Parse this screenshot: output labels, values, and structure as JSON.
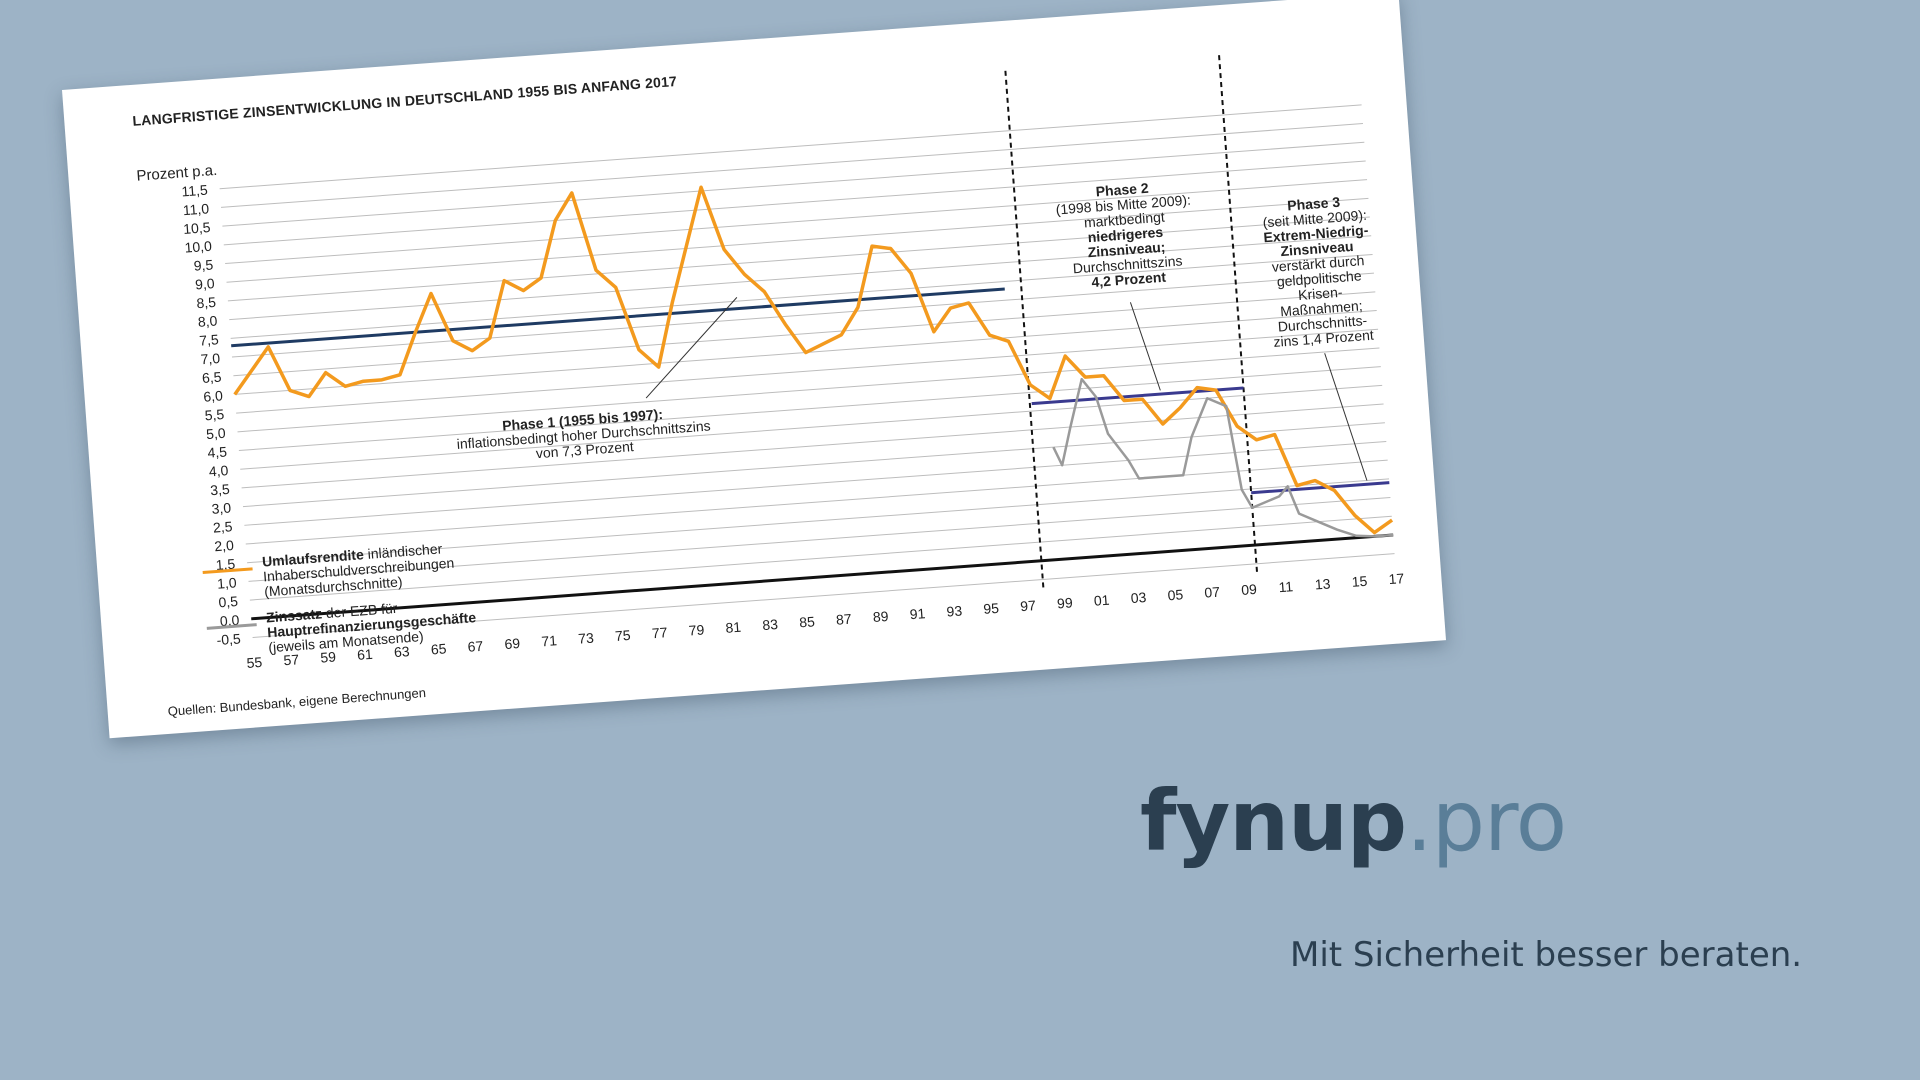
{
  "chart_data": {
    "type": "line",
    "title": "LANGFRISTIGE ZINSENTWICKLUNG IN DEUTSCHLAND 1955 BIS ANFANG 2017",
    "ylabel": "Prozent p.a.",
    "ylim": [
      -0.5,
      11.5
    ],
    "yticks": [
      "11,5",
      "11,0",
      "10,5",
      "10,0",
      "9,5",
      "9,0",
      "8,5",
      "8,0",
      "7,5",
      "7,0",
      "6,5",
      "6,0",
      "5,5",
      "5,0",
      "4,5",
      "4,0",
      "3,5",
      "3,0",
      "2,5",
      "2,0",
      "1,5",
      "1,0",
      "0,5",
      "0,0",
      "-0,5"
    ],
    "xlim": [
      1955,
      2017
    ],
    "xticks": [
      "55",
      "57",
      "59",
      "61",
      "63",
      "65",
      "67",
      "69",
      "71",
      "73",
      "75",
      "77",
      "79",
      "81",
      "83",
      "85",
      "87",
      "89",
      "91",
      "93",
      "95",
      "97",
      "99",
      "01",
      "03",
      "05",
      "07",
      "09",
      "11",
      "13",
      "15",
      "17"
    ],
    "grid": true,
    "series": [
      {
        "name": "Umlaufsrendite inländischer Inhaberschuldverschreibungen (Monatsdurchschnitte)",
        "color": "#f39a1e",
        "x": [
          1955,
          1956,
          1957,
          1958,
          1959,
          1960,
          1961,
          1962,
          1963,
          1964,
          1965,
          1966,
          1967,
          1968,
          1969,
          1970,
          1971,
          1972,
          1973,
          1974,
          1975,
          1976,
          1977,
          1978,
          1979,
          1980,
          1981,
          1982,
          1983,
          1984,
          1985,
          1986,
          1987,
          1988,
          1989,
          1990,
          1991,
          1992,
          1993,
          1994,
          1995,
          1996,
          1997,
          1998,
          1999,
          2000,
          2001,
          2002,
          2003,
          2004,
          2005,
          2006,
          2007,
          2008,
          2009,
          2010,
          2011,
          2012,
          2013,
          2014,
          2015,
          2016,
          2017
        ],
        "y": [
          6.0,
          6.6,
          7.2,
          6.0,
          5.8,
          6.4,
          6.0,
          6.1,
          6.1,
          6.2,
          7.3,
          8.3,
          7.0,
          6.7,
          7.0,
          8.5,
          8.2,
          8.5,
          10.0,
          10.7,
          8.6,
          8.1,
          6.4,
          5.9,
          7.6,
          9.1,
          10.6,
          8.9,
          8.2,
          7.7,
          6.8,
          6.0,
          6.2,
          6.4,
          7.1,
          8.7,
          8.6,
          7.9,
          6.3,
          6.9,
          7.0,
          6.1,
          5.9,
          4.7,
          4.3,
          5.4,
          4.8,
          4.8,
          4.1,
          4.1,
          3.4,
          3.8,
          4.3,
          4.2,
          3.2,
          2.8,
          2.9,
          1.5,
          1.6,
          1.3,
          0.6,
          0.1,
          0.4
        ]
      },
      {
        "name": "Zinssatz der EZB für Hauptrefinanzierungsgeschäfte (jeweils am Monatsende)",
        "color": "#9a9a9a",
        "x": [
          1999,
          1999.4,
          2000,
          2000.8,
          2001.5,
          2002,
          2003,
          2003.5,
          2005.9,
          2006.5,
          2007.5,
          2008.5,
          2009,
          2009.5,
          2011,
          2011.5,
          2012,
          2013,
          2014,
          2015,
          2016,
          2017
        ],
        "y": [
          3.0,
          2.5,
          3.5,
          4.75,
          4.25,
          3.25,
          2.5,
          2.0,
          2.0,
          3.0,
          4.0,
          3.75,
          1.5,
          1.0,
          1.25,
          1.5,
          0.75,
          0.5,
          0.25,
          0.05,
          0.0,
          0.0
        ]
      }
    ],
    "averages": [
      {
        "label": "Phase 1",
        "from": 1955,
        "to": 1997,
        "value": 7.3,
        "color": "#1f3b63"
      },
      {
        "label": "Phase 2",
        "from": 1998,
        "to": 2009.5,
        "value": 4.2,
        "color": "#3a3a8f"
      },
      {
        "label": "Phase 3",
        "from": 2009.5,
        "to": 2017,
        "value": 1.4,
        "color": "#3a3a8f"
      }
    ],
    "phase_dividers": [
      1997.9,
      2009.5
    ],
    "annotations": {
      "phase1": [
        "Phase 1 (1955 bis 1997):",
        "inflationsbedingt hoher Durchschnittszins",
        "von 7,3 Prozent"
      ],
      "phase2": [
        "Phase 2",
        "(1998 bis Mitte 2009):",
        "marktbedingt",
        "niedrigeres",
        "Zinsniveau;",
        "Durchschnittszins",
        "4,2 Prozent"
      ],
      "phase3": [
        "Phase 3",
        "(seit Mitte 2009):",
        "Extrem-Niedrig-",
        "Zinsniveau",
        "verstärkt durch",
        "geldpolitische",
        "Krisen-",
        "Maßnahmen;",
        "Durchschnitts-",
        "zins 1,4 Prozent"
      ]
    },
    "legend": [
      {
        "bold": "Umlaufsrendite",
        "text": " inländischer",
        "line2": "Inhaberschuldverschreibungen",
        "line3": "(Monatsdurchschnitte)"
      },
      {
        "bold": "Zinssatz",
        "text": " der EZB für",
        "line2": "Hauptrefinanzierungsgeschäfte",
        "line3": "(jeweils am Monatsende)"
      }
    ],
    "source": "Quellen: Bundesbank, eigene Berechnungen"
  },
  "brand": {
    "name": "fynup",
    "tld": ".pro",
    "tagline": "Mit Sicherheit besser beraten."
  }
}
